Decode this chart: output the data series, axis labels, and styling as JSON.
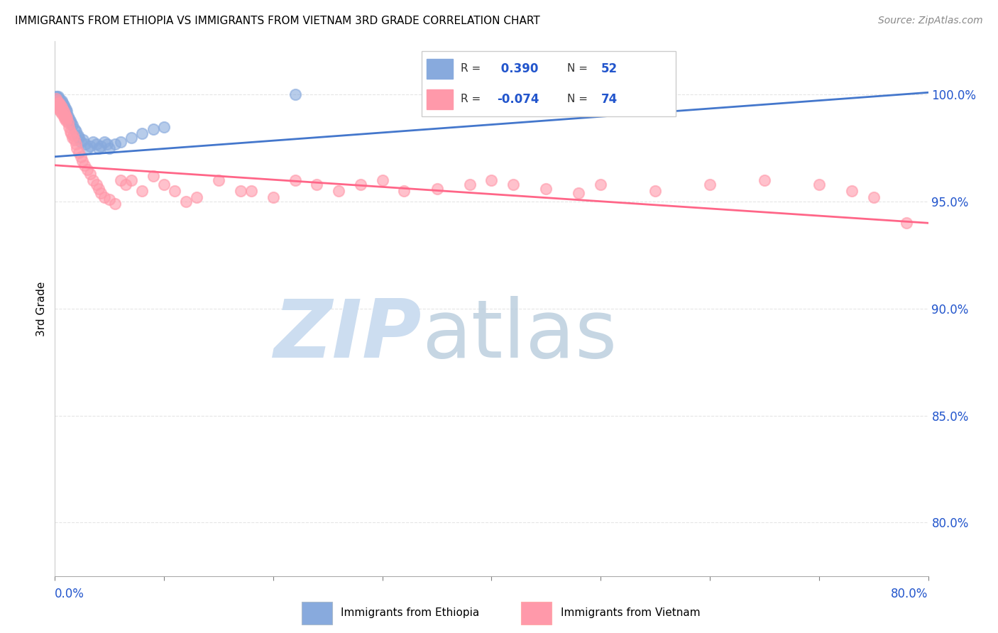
{
  "title": "IMMIGRANTS FROM ETHIOPIA VS IMMIGRANTS FROM VIETNAM 3RD GRADE CORRELATION CHART",
  "source": "Source: ZipAtlas.com",
  "ylabel": "3rd Grade",
  "yaxis_labels": [
    "100.0%",
    "95.0%",
    "90.0%",
    "85.0%",
    "80.0%"
  ],
  "yaxis_values": [
    1.0,
    0.95,
    0.9,
    0.85,
    0.8
  ],
  "xaxis_range": [
    0.0,
    0.8
  ],
  "yaxis_range": [
    0.775,
    1.025
  ],
  "legend_ethiopia": "Immigrants from Ethiopia",
  "legend_vietnam": "Immigrants from Vietnam",
  "R_ethiopia": 0.39,
  "N_ethiopia": 52,
  "R_vietnam": -0.074,
  "N_vietnam": 74,
  "color_ethiopia": "#88AADD",
  "color_vietnam": "#FF99AA",
  "color_ethiopia_line": "#4477CC",
  "color_vietnam_line": "#FF6688",
  "ethiopia_x": [
    0.001,
    0.001,
    0.002,
    0.002,
    0.003,
    0.003,
    0.003,
    0.004,
    0.004,
    0.004,
    0.005,
    0.005,
    0.005,
    0.006,
    0.006,
    0.007,
    0.007,
    0.008,
    0.008,
    0.009,
    0.009,
    0.01,
    0.01,
    0.011,
    0.012,
    0.013,
    0.014,
    0.015,
    0.016,
    0.018,
    0.019,
    0.021,
    0.022,
    0.024,
    0.026,
    0.028,
    0.03,
    0.032,
    0.035,
    0.038,
    0.04,
    0.042,
    0.045,
    0.048,
    0.05,
    0.055,
    0.06,
    0.07,
    0.08,
    0.09,
    0.1,
    0.22
  ],
  "ethiopia_y": [
    0.999,
    0.998,
    0.999,
    0.997,
    0.998,
    0.999,
    0.997,
    0.998,
    0.996,
    0.997,
    0.997,
    0.996,
    0.995,
    0.997,
    0.995,
    0.994,
    0.996,
    0.995,
    0.993,
    0.994,
    0.992,
    0.993,
    0.991,
    0.992,
    0.99,
    0.989,
    0.988,
    0.987,
    0.986,
    0.984,
    0.983,
    0.981,
    0.98,
    0.978,
    0.979,
    0.977,
    0.975,
    0.976,
    0.978,
    0.977,
    0.975,
    0.976,
    0.978,
    0.977,
    0.975,
    0.977,
    0.978,
    0.98,
    0.982,
    0.984,
    0.985,
    1.0
  ],
  "vietnam_x": [
    0.001,
    0.002,
    0.002,
    0.003,
    0.003,
    0.004,
    0.004,
    0.005,
    0.005,
    0.006,
    0.006,
    0.007,
    0.008,
    0.008,
    0.009,
    0.009,
    0.01,
    0.01,
    0.011,
    0.012,
    0.013,
    0.014,
    0.015,
    0.016,
    0.017,
    0.018,
    0.019,
    0.02,
    0.022,
    0.024,
    0.025,
    0.027,
    0.03,
    0.032,
    0.035,
    0.038,
    0.04,
    0.042,
    0.045,
    0.05,
    0.055,
    0.06,
    0.065,
    0.07,
    0.08,
    0.09,
    0.1,
    0.11,
    0.12,
    0.13,
    0.15,
    0.17,
    0.18,
    0.2,
    0.22,
    0.24,
    0.26,
    0.28,
    0.3,
    0.32,
    0.35,
    0.38,
    0.4,
    0.42,
    0.45,
    0.48,
    0.5,
    0.55,
    0.6,
    0.65,
    0.7,
    0.73,
    0.75,
    0.78
  ],
  "vietnam_y": [
    0.998,
    0.997,
    0.995,
    0.996,
    0.994,
    0.996,
    0.993,
    0.995,
    0.992,
    0.994,
    0.991,
    0.993,
    0.992,
    0.99,
    0.991,
    0.989,
    0.99,
    0.988,
    0.989,
    0.987,
    0.985,
    0.983,
    0.982,
    0.98,
    0.981,
    0.979,
    0.977,
    0.975,
    0.973,
    0.971,
    0.969,
    0.967,
    0.965,
    0.963,
    0.96,
    0.958,
    0.956,
    0.954,
    0.952,
    0.951,
    0.949,
    0.96,
    0.958,
    0.96,
    0.955,
    0.962,
    0.958,
    0.955,
    0.95,
    0.952,
    0.96,
    0.955,
    0.955,
    0.952,
    0.96,
    0.958,
    0.955,
    0.958,
    0.96,
    0.955,
    0.956,
    0.958,
    0.96,
    0.958,
    0.956,
    0.954,
    0.958,
    0.955,
    0.958,
    0.96,
    0.958,
    0.955,
    0.952,
    0.94
  ]
}
